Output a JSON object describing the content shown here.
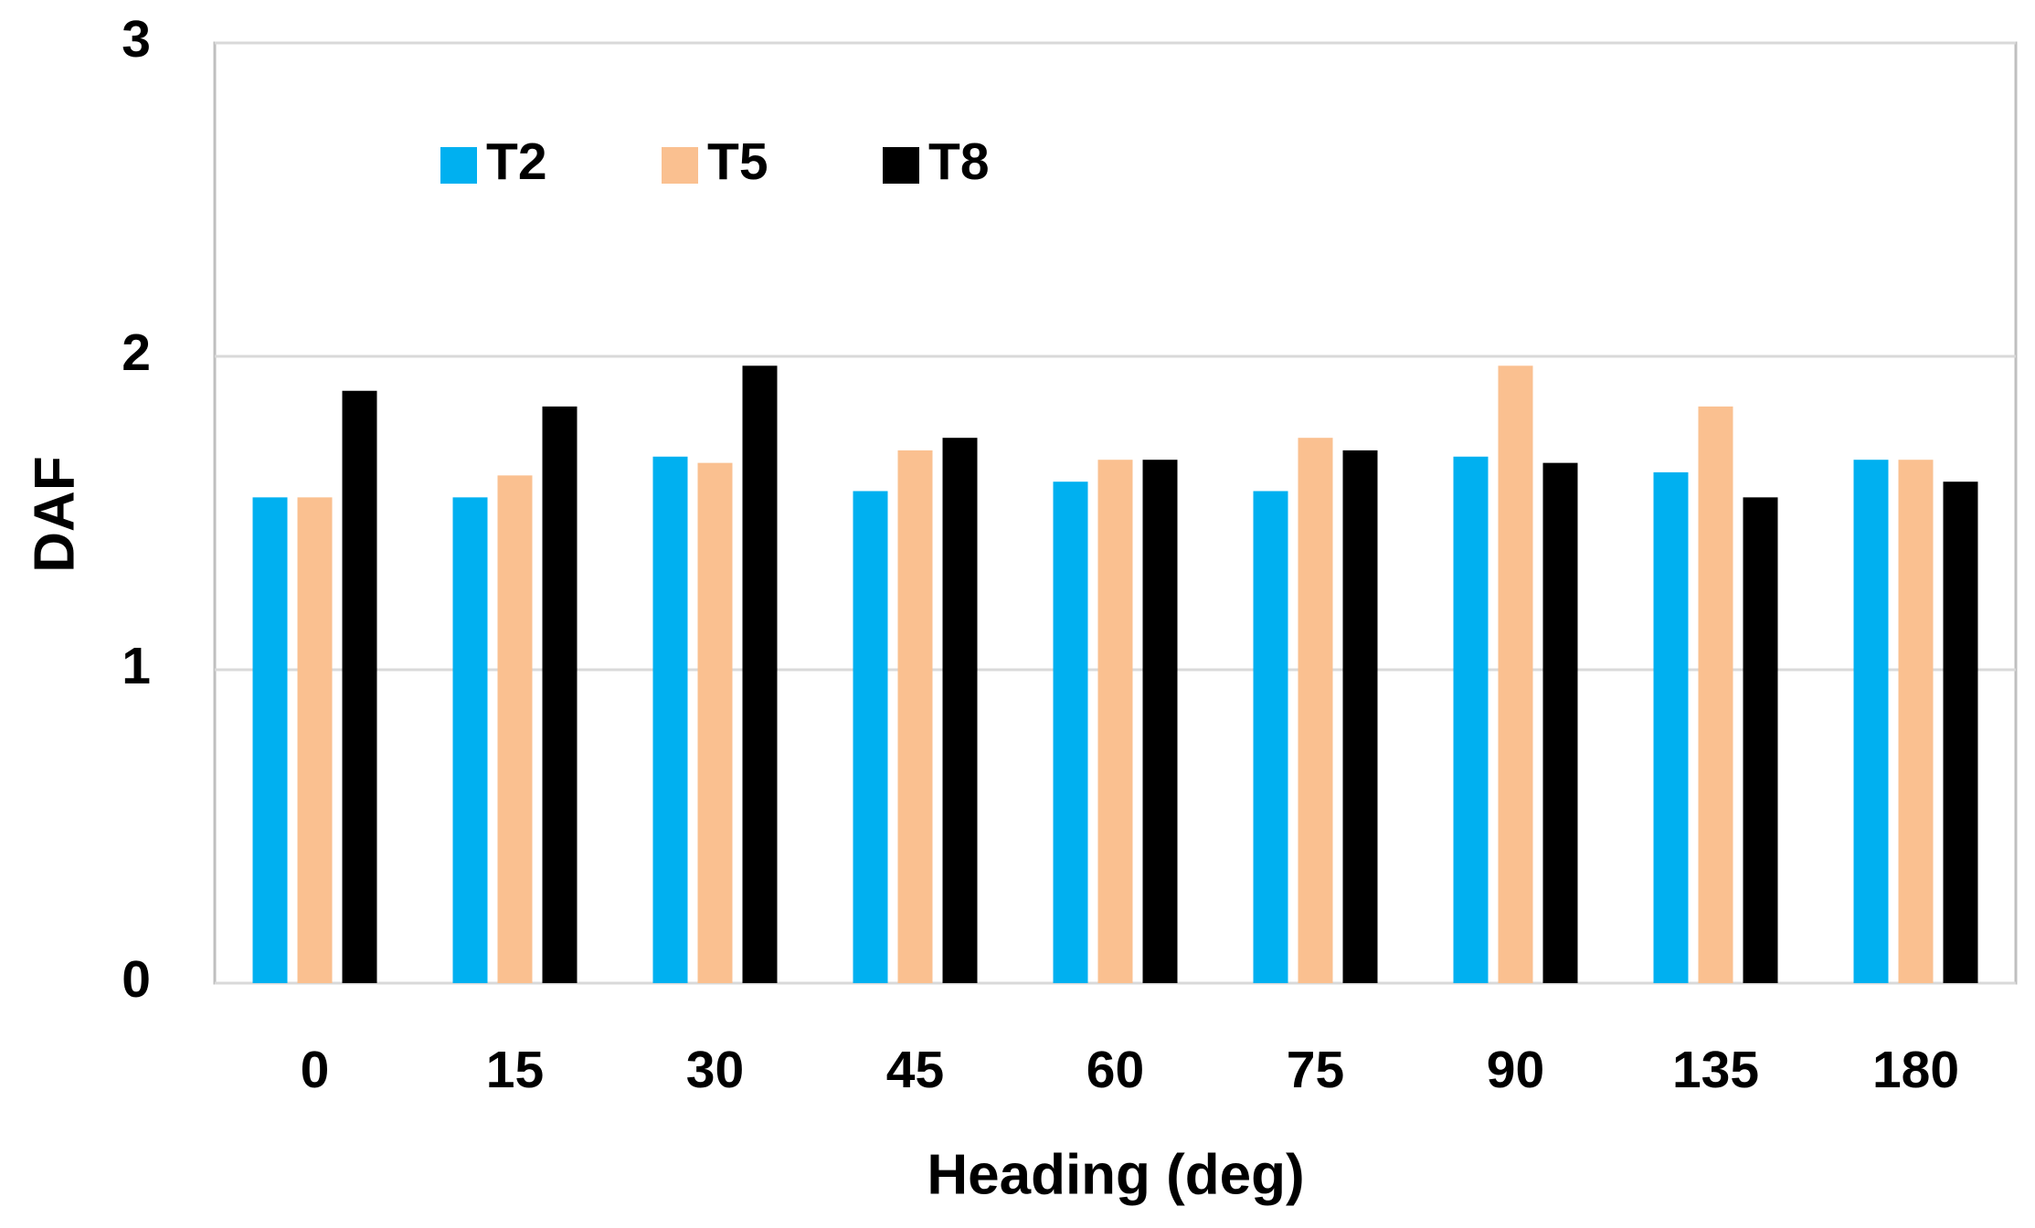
{
  "chart_data": {
    "type": "bar",
    "x_label": "Heading (deg)",
    "y_label": "DAF",
    "categories": [
      "0",
      "15",
      "30",
      "45",
      "60",
      "75",
      "90",
      "135",
      "180"
    ],
    "series": [
      {
        "name": "T2",
        "color": "#00b0f0",
        "values": [
          1.55,
          1.55,
          1.68,
          1.57,
          1.6,
          1.57,
          1.68,
          1.63,
          1.67
        ]
      },
      {
        "name": "T5",
        "color": "#fac090",
        "values": [
          1.55,
          1.62,
          1.66,
          1.7,
          1.67,
          1.74,
          1.97,
          1.84,
          1.67
        ]
      },
      {
        "name": "T8",
        "color": "#000000",
        "values": [
          1.89,
          1.84,
          1.97,
          1.74,
          1.67,
          1.7,
          1.66,
          1.55,
          1.6
        ]
      }
    ],
    "ylim": [
      0,
      3
    ],
    "yticks": [
      0,
      1,
      2,
      3
    ],
    "grid": true,
    "legend": "top-left"
  }
}
